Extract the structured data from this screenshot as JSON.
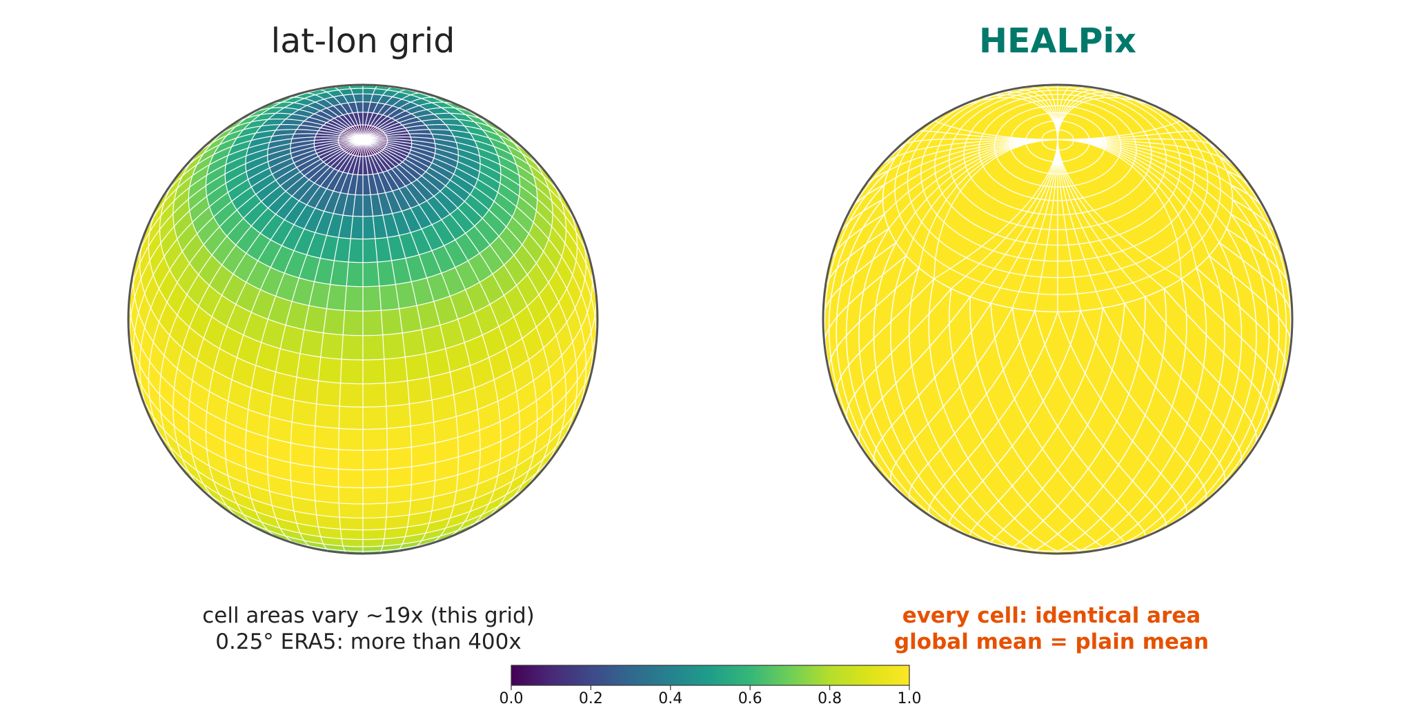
{
  "panels": {
    "left": {
      "title": "lat-lon grid",
      "caption_line1": "cell areas vary ~19x (this grid)",
      "caption_line2": "0.25° ERA5: more than 400x"
    },
    "right": {
      "title": "HEALPix",
      "caption_line1": "every cell: identical area",
      "caption_line2": "global mean = plain mean"
    }
  },
  "colorbar": {
    "colormap": "viridis",
    "range": [
      0.0,
      1.0
    ],
    "tick_labels": [
      "0.0",
      "0.2",
      "0.4",
      "0.6",
      "0.8",
      "1.0"
    ]
  },
  "colors": {
    "title_left": "#222222",
    "title_right": "#00796b",
    "caption_left": "#222222",
    "caption_right": "#e65100",
    "globe_outline": "#555555",
    "grid_lines": "#ffffff",
    "healpix_fill": "#fde725"
  }
}
